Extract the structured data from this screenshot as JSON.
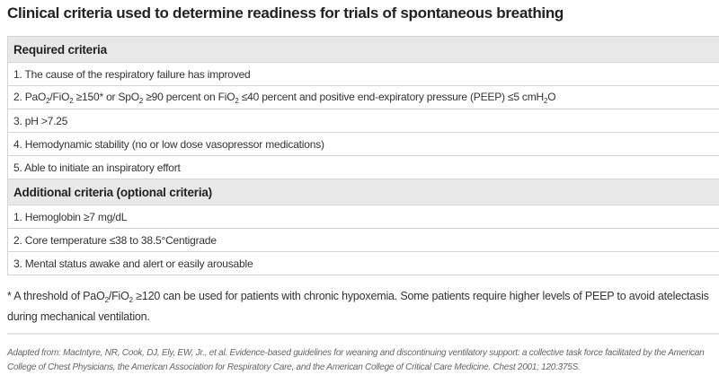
{
  "title": "Clinical criteria used to determine readiness for trials of spontaneous breathing",
  "sections": [
    {
      "header": "Required criteria",
      "rows": [
        "1. The cause of the respiratory failure has improved",
        [
          "2. PaO",
          "2",
          "/FiO",
          "2",
          " ≥150* or SpO",
          "2",
          " ≥90 percent on FiO",
          "2",
          " ≤40 percent and positive end-expiratory pressure (PEEP) ≤5 cmH",
          "2",
          "O"
        ],
        "3. pH >7.25",
        "4. Hemodynamic stability (no or low dose vasopressor medications)",
        "5. Able to initiate an inspiratory effort"
      ]
    },
    {
      "header": "Additional criteria (optional criteria)",
      "rows": [
        "1. Hemoglobin ≥7 mg/dL",
        "2. Core temperature ≤38 to 38.5°Centigrade",
        "3. Mental status awake and alert or easily arousable"
      ]
    }
  ],
  "footnote": [
    "* A threshold of PaO",
    "2",
    "/FiO",
    "2",
    " ≥120 can be used for patients with chronic hypoxemia. Some patients require higher levels of PEEP to avoid atelectasis during mechanical ventilation."
  ],
  "citation": "Adapted from: MacIntyre, NR, Cook, DJ, Ely, EW, Jr., et al. Evidence-based guidelines for weaning and discontinuing ventilatory support: a collective task force facilitated by the American College of Chest Physicians, the American Association for Respiratory Care, and the American College of Critical Care Medicine. Chest 2001; 120:375S."
}
